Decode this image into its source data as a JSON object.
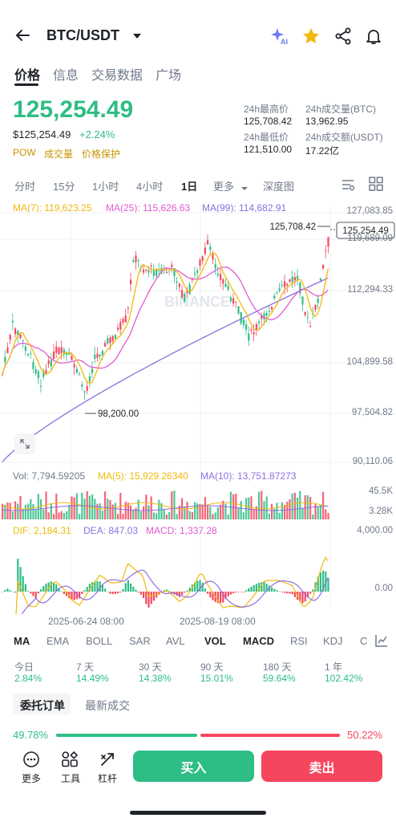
{
  "header": {
    "title": "BTC/USDT"
  },
  "tabs": [
    "价格",
    "信息",
    "交易数据",
    "广场"
  ],
  "price": {
    "main": "125,254.49",
    "usd": "$125,254.49",
    "change": "+2.24%",
    "tags": [
      "POW",
      "成交量",
      "价格保护"
    ]
  },
  "stats": {
    "high_label": "24h最高价",
    "high": "125,708.42",
    "vol_btc_label": "24h成交量(BTC)",
    "vol_btc": "13,962.95",
    "low_label": "24h最低价",
    "low": "121,510.00",
    "vol_usdt_label": "24h成交额(USDT)",
    "vol_usdt": "17.22亿"
  },
  "timeframes": [
    "分时",
    "15分",
    "1小时",
    "4小时",
    "1日",
    "更多",
    "深度图"
  ],
  "ma_legend": {
    "ma7": "MA(7): 119,623.25",
    "ma25": "MA(25): 115,626.63",
    "ma99": "MA(99): 114,682.91"
  },
  "price_axis": [
    "127,083.85",
    "119,689.09",
    "112,294.33",
    "104,899.58",
    "97,504.82",
    "90,110.06"
  ],
  "chart_labels": {
    "high": "125,708.42",
    "current": "125,254.49",
    "low": "98,200.00"
  },
  "vol_legend": {
    "vol": "Vol: 7,794.59205",
    "ma5": "MA(5): 15,929.26340",
    "ma10": "MA(10): 13,751.87273"
  },
  "vol_axis": [
    "45.5K",
    "3.28K"
  ],
  "macd_legend": {
    "dif": "DIF: 2,184.31",
    "dea": "DEA: 847.03",
    "macd": "MACD: 1,337.28"
  },
  "macd_axis": [
    "4,000.00",
    "0.00"
  ],
  "dates": [
    "2025-06-24 08:00",
    "2025-08-19 08:00"
  ],
  "indicators": [
    "MA",
    "EMA",
    "BOLL",
    "SAR",
    "AVL",
    "VOL",
    "MACD",
    "RSI",
    "KDJ",
    "C"
  ],
  "performance": [
    {
      "label": "今日",
      "value": "2.84%"
    },
    {
      "label": "7 天",
      "value": "14.49%"
    },
    {
      "label": "30 天",
      "value": "14.38%"
    },
    {
      "label": "90 天",
      "value": "15.01%"
    },
    {
      "label": "180 天",
      "value": "59.64%"
    },
    {
      "label": "1 年",
      "value": "102.42%"
    }
  ],
  "order_tabs": [
    "委托订单",
    "最新成交"
  ],
  "ratio": {
    "buy": "49.78%",
    "sell": "50.22%",
    "buy_fraction": 0.4978
  },
  "bottom": {
    "more": "更多",
    "tools": "工具",
    "leverage": "杠杆",
    "buy": "买入",
    "sell": "卖出"
  },
  "colors": {
    "up": "#2ebd85",
    "down": "#f6465d",
    "ma7": "#f0b90b",
    "ma25": "#e25ad1",
    "ma99": "#8c6fe0"
  }
}
